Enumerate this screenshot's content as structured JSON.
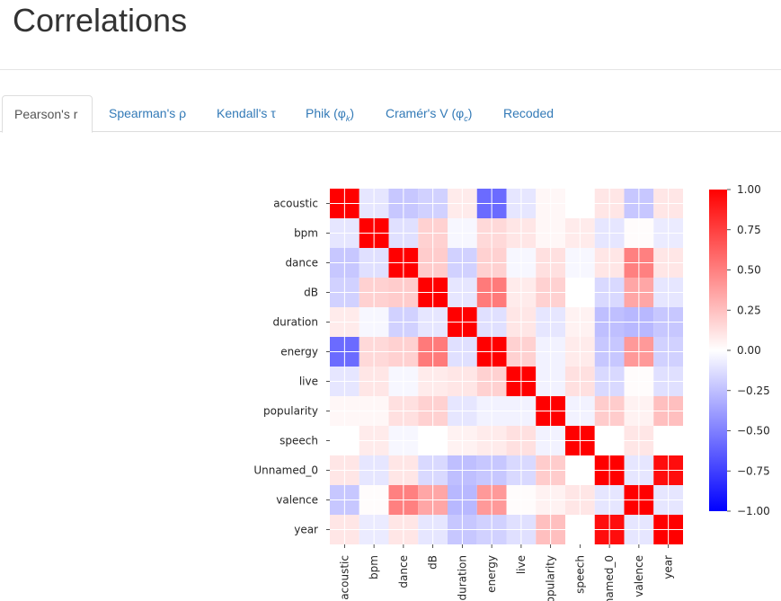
{
  "page": {
    "title": "Correlations"
  },
  "tabs": [
    {
      "label": "Pearson's r",
      "active": true
    },
    {
      "label": "Spearman's ρ",
      "active": false
    },
    {
      "label": "Kendall's τ",
      "active": false
    },
    {
      "label_main": "Phik (φ",
      "label_sub": "k",
      "label_end": ")",
      "active": false
    },
    {
      "label_main": "Cramér's V (φ",
      "label_sub": "c",
      "label_end": ")",
      "active": false
    },
    {
      "label": "Recoded",
      "active": false
    }
  ],
  "colors": {
    "negative": "#0000ff",
    "zero": "#ffffff",
    "positive": "#ff0000",
    "link": "#337ab7"
  },
  "chart_data": {
    "type": "heatmap",
    "variables": [
      "acoustic",
      "bpm",
      "dance",
      "dB",
      "duration",
      "energy",
      "live",
      "popularity",
      "speech",
      "Unnamed_0",
      "valence",
      "year"
    ],
    "matrix": [
      [
        1.0,
        -0.1,
        -0.22,
        -0.18,
        0.08,
        -0.58,
        -0.1,
        0.03,
        0.0,
        0.1,
        -0.22,
        0.1
      ],
      [
        -0.1,
        1.0,
        -0.12,
        0.18,
        -0.03,
        0.15,
        0.1,
        0.03,
        0.08,
        -0.1,
        0.01,
        -0.08
      ],
      [
        -0.22,
        -0.12,
        1.0,
        0.2,
        -0.18,
        0.18,
        -0.03,
        0.12,
        -0.03,
        0.1,
        0.5,
        0.1
      ],
      [
        -0.18,
        0.18,
        0.2,
        1.0,
        -0.1,
        0.52,
        0.08,
        0.18,
        0.0,
        -0.15,
        0.35,
        -0.1
      ],
      [
        0.08,
        -0.03,
        -0.18,
        -0.1,
        1.0,
        -0.12,
        0.1,
        -0.1,
        0.05,
        -0.25,
        -0.28,
        -0.22
      ],
      [
        -0.58,
        0.15,
        0.18,
        0.52,
        -0.12,
        1.0,
        0.18,
        -0.05,
        0.08,
        -0.22,
        0.4,
        -0.18
      ],
      [
        -0.1,
        0.1,
        -0.03,
        0.08,
        0.1,
        0.18,
        1.0,
        -0.05,
        0.12,
        -0.15,
        0.01,
        -0.12
      ],
      [
        0.03,
        0.03,
        0.12,
        0.18,
        -0.1,
        -0.05,
        -0.05,
        1.0,
        -0.05,
        0.2,
        0.05,
        0.25
      ],
      [
        0.0,
        0.08,
        -0.03,
        0.0,
        0.05,
        0.08,
        0.12,
        -0.05,
        1.0,
        0.0,
        0.1,
        0.0
      ],
      [
        0.1,
        -0.1,
        0.1,
        -0.15,
        -0.25,
        -0.22,
        -0.15,
        0.2,
        0.0,
        1.0,
        -0.1,
        0.95
      ],
      [
        -0.22,
        0.01,
        0.5,
        0.35,
        -0.28,
        0.4,
        0.01,
        0.05,
        0.1,
        -0.1,
        1.0,
        -0.1
      ],
      [
        0.1,
        -0.08,
        0.1,
        -0.1,
        -0.22,
        -0.18,
        -0.12,
        0.25,
        0.0,
        0.95,
        -0.1,
        1.0
      ]
    ],
    "colorbar": {
      "min": -1.0,
      "max": 1.0,
      "ticks": [
        1.0,
        0.75,
        0.5,
        0.25,
        0.0,
        -0.25,
        -0.5,
        -0.75,
        -1.0
      ],
      "tick_labels": [
        "1.00",
        "0.75",
        "0.50",
        "0.25",
        "0.00",
        "−0.25",
        "−0.50",
        "−0.75",
        "−1.00"
      ]
    },
    "colormap": "bwr",
    "grid": true
  }
}
